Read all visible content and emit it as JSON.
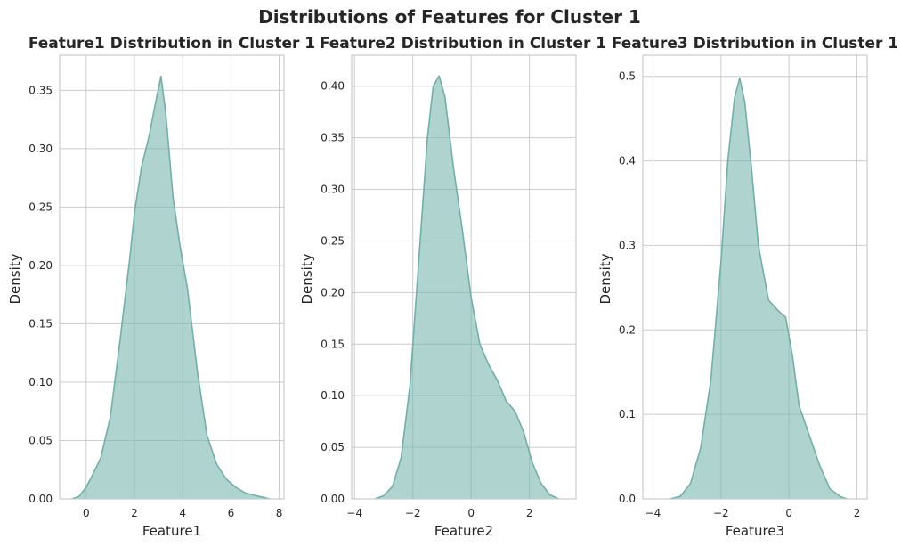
{
  "figure": {
    "suptitle": "Distributions of Features for Cluster 1",
    "fill_color": "#76b5ae",
    "line_color": "#6fb0a9",
    "background": "#ffffff",
    "grid_color": "#cccccc"
  },
  "chart_data": [
    {
      "type": "area",
      "title": "Feature1 Distribution in Cluster 1",
      "xlabel": "Feature1",
      "ylabel": "Density",
      "xlim": [
        -1.1,
        8.2
      ],
      "ylim": [
        0,
        0.38
      ],
      "xticks": [
        "0",
        "2",
        "4",
        "6",
        "8"
      ],
      "xtick_values": [
        0,
        2,
        4,
        6,
        8
      ],
      "yticks": [
        "0.00",
        "0.05",
        "0.10",
        "0.15",
        "0.20",
        "0.25",
        "0.30",
        "0.35"
      ],
      "ytick_values": [
        0,
        0.05,
        0.1,
        0.15,
        0.2,
        0.25,
        0.3,
        0.35
      ],
      "grid": true,
      "x": [
        -0.6,
        -0.3,
        0.0,
        0.3,
        0.6,
        1.0,
        1.4,
        1.8,
        2.0,
        2.3,
        2.6,
        2.9,
        3.1,
        3.3,
        3.6,
        3.9,
        4.2,
        4.6,
        5.0,
        5.4,
        5.8,
        6.2,
        6.6,
        7.0,
        7.4,
        7.6
      ],
      "y": [
        0.0,
        0.002,
        0.01,
        0.022,
        0.035,
        0.07,
        0.135,
        0.205,
        0.245,
        0.285,
        0.31,
        0.342,
        0.362,
        0.33,
        0.258,
        0.215,
        0.18,
        0.11,
        0.055,
        0.03,
        0.017,
        0.01,
        0.005,
        0.003,
        0.001,
        0.0
      ]
    },
    {
      "type": "area",
      "title": "Feature2 Distribution in Cluster 1",
      "xlabel": "Feature2",
      "ylabel": "Density",
      "xlim": [
        -4.1,
        3.6
      ],
      "ylim": [
        0,
        0.43
      ],
      "xticks": [
        "−4",
        "−2",
        "0",
        "2"
      ],
      "xtick_values": [
        -4,
        -2,
        0,
        2
      ],
      "yticks": [
        "0.00",
        "0.05",
        "0.10",
        "0.15",
        "0.20",
        "0.25",
        "0.30",
        "0.35",
        "0.40"
      ],
      "ytick_values": [
        0,
        0.05,
        0.1,
        0.15,
        0.2,
        0.25,
        0.3,
        0.35,
        0.4
      ],
      "grid": true,
      "x": [
        -3.3,
        -3.0,
        -2.7,
        -2.4,
        -2.1,
        -1.8,
        -1.5,
        -1.3,
        -1.1,
        -0.9,
        -0.6,
        -0.3,
        0.0,
        0.3,
        0.6,
        0.9,
        1.2,
        1.5,
        1.8,
        2.1,
        2.4,
        2.7,
        3.0
      ],
      "y": [
        0.0,
        0.003,
        0.012,
        0.04,
        0.11,
        0.23,
        0.35,
        0.4,
        0.41,
        0.39,
        0.32,
        0.26,
        0.195,
        0.15,
        0.13,
        0.115,
        0.095,
        0.085,
        0.065,
        0.035,
        0.015,
        0.004,
        0.0
      ]
    },
    {
      "type": "area",
      "title": "Feature3 Distribution in Cluster 1",
      "xlabel": "Feature3",
      "ylabel": "Density",
      "xlim": [
        -4.3,
        2.3
      ],
      "ylim": [
        0,
        0.525
      ],
      "xticks": [
        "−4",
        "−2",
        "0",
        "2"
      ],
      "xtick_values": [
        -4,
        -2,
        0,
        2
      ],
      "yticks": [
        "0.0",
        "0.1",
        "0.2",
        "0.3",
        "0.4",
        "0.5"
      ],
      "ytick_values": [
        0,
        0.1,
        0.2,
        0.3,
        0.4,
        0.5
      ],
      "grid": true,
      "x": [
        -3.5,
        -3.2,
        -2.9,
        -2.6,
        -2.3,
        -2.0,
        -1.8,
        -1.6,
        -1.45,
        -1.3,
        -1.1,
        -0.9,
        -0.6,
        -0.3,
        -0.1,
        0.1,
        0.3,
        0.6,
        0.9,
        1.2,
        1.5,
        1.7
      ],
      "y": [
        0.0,
        0.003,
        0.018,
        0.06,
        0.14,
        0.28,
        0.4,
        0.475,
        0.498,
        0.47,
        0.39,
        0.3,
        0.235,
        0.222,
        0.215,
        0.17,
        0.11,
        0.075,
        0.04,
        0.012,
        0.003,
        0.0
      ]
    }
  ]
}
